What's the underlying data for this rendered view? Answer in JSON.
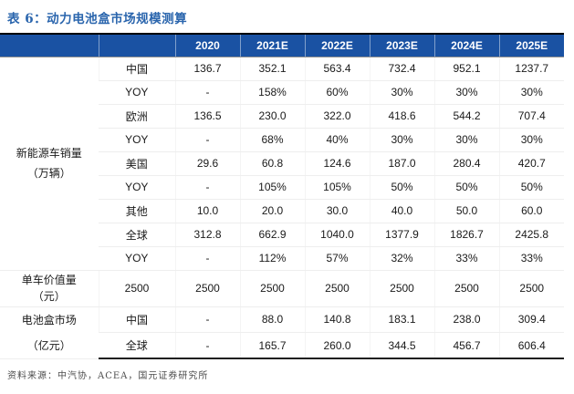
{
  "title": "表 6：动力电池盒市场规模测算",
  "colors": {
    "header_bg": "#1a52a3",
    "title_blue": "#2a65ad",
    "header_text": "#ffffff"
  },
  "table": {
    "year_headers": [
      "2020",
      "2021E",
      "2022E",
      "2023E",
      "2024E",
      "2025E"
    ],
    "groups": {
      "sales": {
        "line1": "新能源车销量",
        "line2": "（万辆）"
      },
      "unit_value": {
        "line1": "单车价值量",
        "line2": "（元）"
      },
      "market": {
        "line1": "电池盒市场",
        "line2": "（亿元）"
      }
    },
    "rows": [
      {
        "label": "中国",
        "values": [
          "136.7",
          "352.1",
          "563.4",
          "732.4",
          "952.1",
          "1237.7"
        ]
      },
      {
        "label": "YOY",
        "values": [
          "-",
          "158%",
          "60%",
          "30%",
          "30%",
          "30%"
        ]
      },
      {
        "label": "欧洲",
        "values": [
          "136.5",
          "230.0",
          "322.0",
          "418.6",
          "544.2",
          "707.4"
        ]
      },
      {
        "label": "YOY",
        "values": [
          "-",
          "68%",
          "40%",
          "30%",
          "30%",
          "30%"
        ]
      },
      {
        "label": "美国",
        "values": [
          "29.6",
          "60.8",
          "124.6",
          "187.0",
          "280.4",
          "420.7"
        ]
      },
      {
        "label": "YOY",
        "values": [
          "-",
          "105%",
          "105%",
          "50%",
          "50%",
          "50%"
        ]
      },
      {
        "label": "其他",
        "values": [
          "10.0",
          "20.0",
          "30.0",
          "40.0",
          "50.0",
          "60.0"
        ]
      },
      {
        "label": "全球",
        "values": [
          "312.8",
          "662.9",
          "1040.0",
          "1377.9",
          "1826.7",
          "2425.8"
        ]
      },
      {
        "label": "YOY",
        "values": [
          "-",
          "112%",
          "57%",
          "32%",
          "33%",
          "33%"
        ]
      },
      {
        "label": "2500",
        "values": [
          "2500",
          "2500",
          "2500",
          "2500",
          "2500",
          "2500"
        ]
      },
      {
        "label": "中国",
        "values": [
          "-",
          "88.0",
          "140.8",
          "183.1",
          "238.0",
          "309.4"
        ]
      },
      {
        "label": "全球",
        "values": [
          "-",
          "165.7",
          "260.0",
          "344.5",
          "456.7",
          "606.4"
        ]
      }
    ]
  },
  "source": "资料来源：中汽协，ACEA，国元证券研究所"
}
